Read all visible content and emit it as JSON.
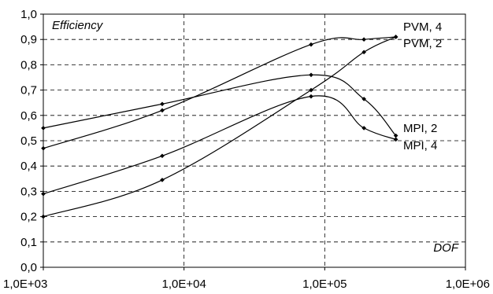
{
  "chart_data": {
    "type": "line",
    "title": "",
    "xlabel": "DOF",
    "ylabel": "Efficiency",
    "x_scale": "log",
    "xlim": [
      1000,
      1000000
    ],
    "ylim": [
      0,
      1
    ],
    "grid": true,
    "x_ticks": [
      "1,0E+03",
      "1,0E+04",
      "1,0E+05",
      "1,0E+06"
    ],
    "y_ticks": [
      "0,0",
      "0,1",
      "0,2",
      "0,3",
      "0,4",
      "0,5",
      "0,6",
      "0,7",
      "0,8",
      "0,9",
      "1,0"
    ],
    "series": [
      {
        "name": "PVM, 4",
        "x": [
          1000,
          7000,
          80000,
          190000,
          320000
        ],
        "y": [
          0.47,
          0.62,
          0.88,
          0.9,
          0.91
        ]
      },
      {
        "name": "PVM, 2",
        "x": [
          1000,
          7000,
          80000,
          190000,
          320000
        ],
        "y": [
          0.2,
          0.345,
          0.7,
          0.85,
          0.91
        ]
      },
      {
        "name": "MPI, 2",
        "x": [
          1000,
          7000,
          80000,
          190000,
          320000
        ],
        "y": [
          0.55,
          0.645,
          0.76,
          0.665,
          0.52
        ]
      },
      {
        "name": "MPI, 4",
        "x": [
          1000,
          7000,
          80000,
          190000,
          320000
        ],
        "y": [
          0.29,
          0.44,
          0.675,
          0.55,
          0.505
        ]
      }
    ]
  }
}
